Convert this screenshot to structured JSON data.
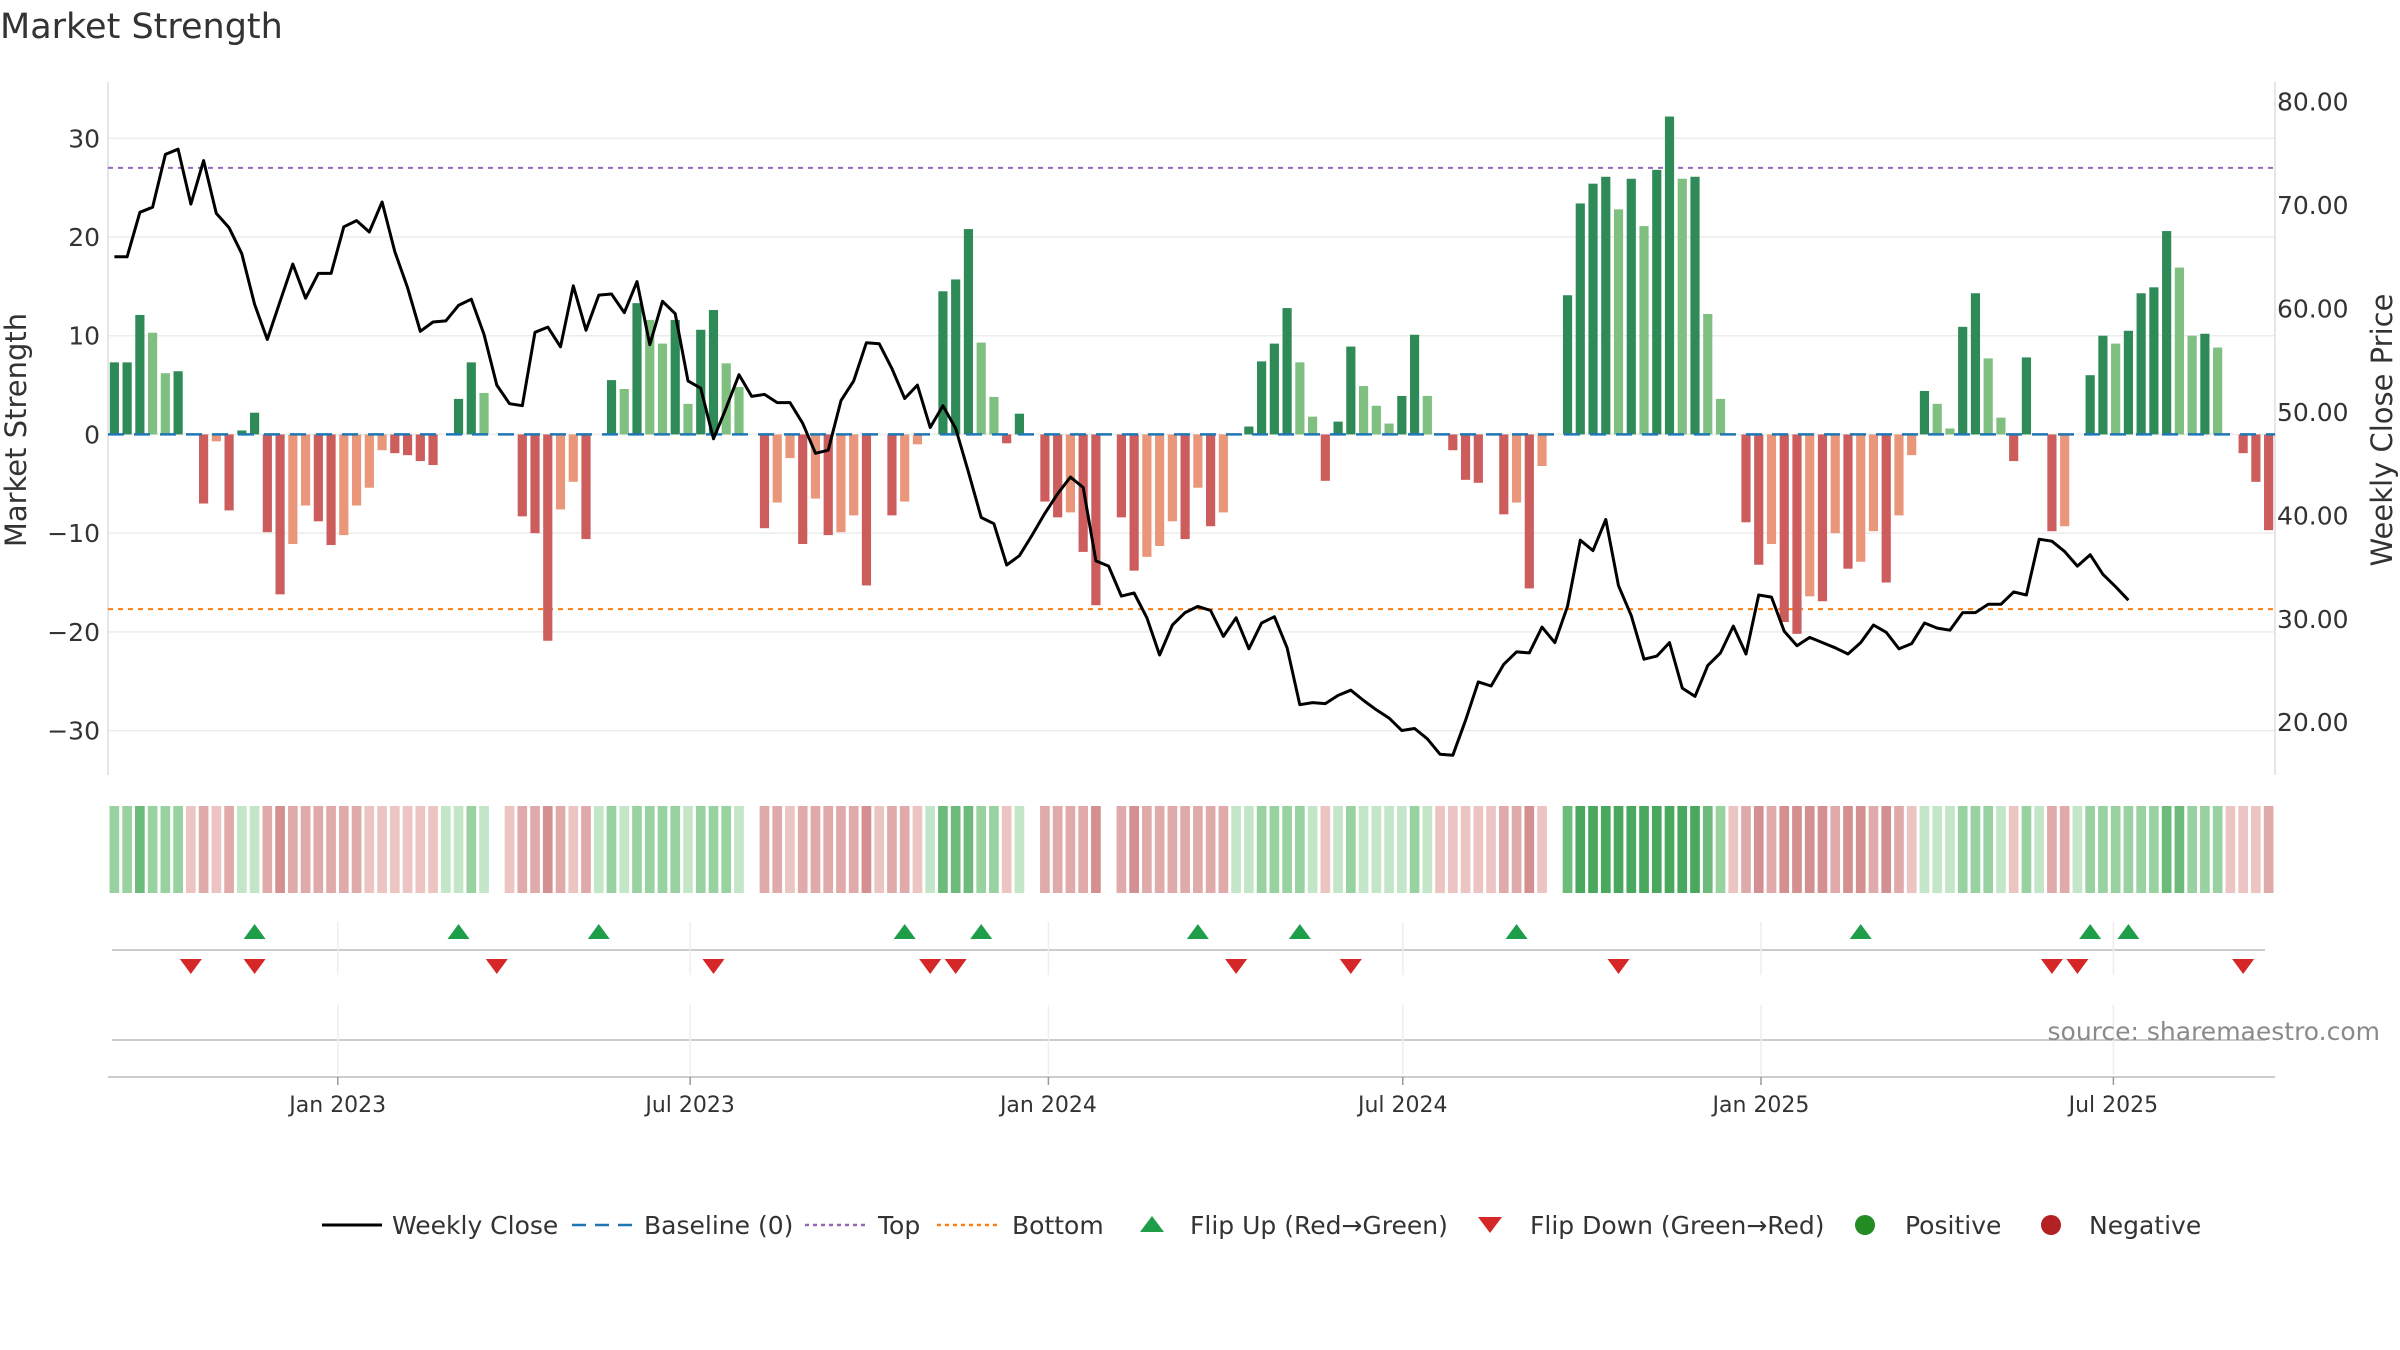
{
  "colors": {
    "pos_strong": "#2e8b57",
    "pos_weak": "#7fbf7f",
    "neg_strong": "#cd5c5c",
    "neg_weak": "#e9967a",
    "close_line": "#000000",
    "baseline": "#1f77b4",
    "top": "#9467bd",
    "bottom": "#ff7f0e",
    "flip_up": "#1f9e4a",
    "flip_down": "#d62728",
    "positive": "#228b22",
    "negative": "#b22222"
  },
  "chart_data": {
    "type": "bar",
    "title": "Market Strength",
    "source": "source: sharemaestro.com",
    "ylabel": "Market Strength",
    "y2label": "Weekly Close Price",
    "ylim": [
      -34.5,
      35.7
    ],
    "y2lim": [
      14.9,
      81.9
    ],
    "yticks": [
      30,
      20,
      10,
      0,
      -10,
      -20,
      -30
    ],
    "ytick_labels": [
      "30",
      "20",
      "10",
      "0",
      "−10",
      "−20",
      "−30"
    ],
    "y2ticks": [
      80,
      70,
      60,
      50,
      40,
      30,
      20
    ],
    "y2tick_labels": [
      "80.00",
      "70.00",
      "60.00",
      "50.00",
      "40.00",
      "30.00",
      "20.00"
    ],
    "top_level": 27,
    "bottom_level": -17.7,
    "baseline": 0,
    "x_start": "2022-09-05",
    "x_end": "2025-09-22",
    "xtick_dates": [
      "2023-01-01",
      "2023-07-01",
      "2024-01-01",
      "2024-07-01",
      "2025-01-01",
      "2025-07-01"
    ],
    "xtick_labels": [
      "Jan 2023",
      "Jul 2023",
      "Jan 2024",
      "Jul 2024",
      "Jan 2025",
      "Jul 2025"
    ],
    "strength": [
      7.3,
      7.3,
      12.1,
      10.3,
      6.2,
      6.4,
      0,
      -7,
      -0.7,
      -7.7,
      0.4,
      2.2,
      -9.9,
      -16.2,
      -11.1,
      -7.2,
      -8.8,
      -11.2,
      -10.2,
      -7.2,
      -5.4,
      -1.6,
      -1.9,
      -2.1,
      -2.7,
      -3.1,
      0,
      3.6,
      7.3,
      4.2,
      0,
      0,
      -8.3,
      -10,
      -20.9,
      -7.6,
      -4.8,
      -10.6,
      0,
      5.5,
      4.6,
      13.3,
      11.6,
      9.2,
      11.6,
      3.1,
      10.6,
      12.6,
      7.2,
      4.8,
      0,
      -9.5,
      -6.9,
      -2.4,
      -11.1,
      -6.5,
      -10.2,
      -9.9,
      -8.2,
      -15.3,
      0,
      -8.2,
      -6.8,
      -1,
      0,
      14.5,
      15.7,
      20.8,
      9.3,
      3.8,
      -0.9,
      2.1,
      0,
      -6.8,
      -8.4,
      -7.9,
      -11.9,
      -17.3,
      0,
      -8.4,
      -13.8,
      -12.4,
      -11.3,
      -8.8,
      -10.6,
      -5.4,
      -9.3,
      -7.9,
      0,
      0.8,
      7.4,
      9.2,
      12.8,
      7.3,
      1.8,
      -4.7,
      1.3,
      8.9,
      4.9,
      2.9,
      1.1,
      3.9,
      10.1,
      3.9,
      0,
      -1.6,
      -4.6,
      -4.9,
      0,
      -8.1,
      -6.9,
      -15.6,
      -3.2,
      0,
      14.1,
      23.4,
      25.4,
      26.1,
      22.8,
      25.9,
      21.1,
      26.8,
      32.2,
      25.9,
      26.1,
      12.2,
      3.6,
      0,
      -8.9,
      -13.2,
      -11.1,
      -19,
      -20.2,
      -16.4,
      -16.9,
      -10,
      -13.6,
      -12.9,
      -9.8,
      -15,
      -8.2,
      -2.1,
      4.4,
      3.1,
      0.6,
      10.9,
      14.3,
      7.7,
      1.7,
      -2.7,
      7.8,
      0,
      -9.8,
      -9.3,
      0,
      6,
      10,
      9.2,
      10.5,
      14.3,
      14.9,
      20.6,
      16.9,
      10,
      10.2,
      8.8,
      0,
      -1.9,
      -4.8,
      -9.7
    ],
    "close": [
      65,
      65,
      69.3,
      69.8,
      74.9,
      75.4,
      70.1,
      74.3,
      69.2,
      67.8,
      65.3,
      60.4,
      57,
      60.7,
      64.3,
      61,
      63.4,
      63.4,
      67.9,
      68.5,
      67.4,
      70.3,
      65.5,
      62,
      57.8,
      58.7,
      58.8,
      60.3,
      60.9,
      57.5,
      52.6,
      50.8,
      50.6,
      57.7,
      58.2,
      56.3,
      62.2,
      57.9,
      61.3,
      61.4,
      59.6,
      62.6,
      56.5,
      60.7,
      59.5,
      53,
      52.3,
      47.4,
      50.4,
      53.6,
      51.5,
      51.7,
      50.9,
      50.9,
      48.9,
      46,
      46.3,
      51.1,
      53,
      56.7,
      56.6,
      54.2,
      51.3,
      52.6,
      48.5,
      50.6,
      48.4,
      44.2,
      39.8,
      39.2,
      35.2,
      36.1,
      38.1,
      40.2,
      42.1,
      43.7,
      42.7,
      35.6,
      35.1,
      32.2,
      32.5,
      30.1,
      26.5,
      29.4,
      30.6,
      31.2,
      30.8,
      28.3,
      30.1,
      27.1,
      29.6,
      30.2,
      27.2,
      21.7,
      21.9,
      21.8,
      22.6,
      23.1,
      22.1,
      21.2,
      20.4,
      19.2,
      19.4,
      18.4,
      16.9,
      16.8,
      20.2,
      23.9,
      23.5,
      25.6,
      26.8,
      26.7,
      29.2,
      27.7,
      31.2,
      37.6,
      36.6,
      39.6,
      33.2,
      30.3,
      26.1,
      26.4,
      27.7,
      23.3,
      22.5,
      25.5,
      26.7,
      29.3,
      26.6,
      32.3,
      32.1,
      28.8,
      27.4,
      28.2,
      27.7,
      27.2,
      26.6,
      27.7,
      29.4,
      28.7,
      27.1,
      27.6,
      29.6,
      29.1,
      28.9,
      30.6,
      30.6,
      31.4,
      31.4,
      32.6,
      32.3,
      37.7,
      37.5,
      36.5,
      35.1,
      36.2,
      34.3,
      33.1,
      31.8
    ],
    "tiles": [
      2,
      2,
      3,
      2,
      2,
      2,
      -1,
      -2,
      -1,
      -2,
      1,
      1,
      -2,
      -3,
      -2,
      -2,
      -2,
      -2,
      -2,
      -2,
      -1,
      -1,
      -1,
      -1,
      -1,
      -1,
      1,
      1,
      2,
      1,
      0,
      -1,
      -2,
      -2,
      -3,
      -2,
      -1,
      -2,
      1,
      2,
      1,
      2,
      2,
      2,
      2,
      1,
      2,
      2,
      2,
      1,
      0,
      -2,
      -2,
      -1,
      -2,
      -2,
      -2,
      -2,
      -2,
      -3,
      -1,
      -2,
      -2,
      -1,
      1,
      3,
      3,
      3,
      2,
      2,
      -1,
      1,
      0,
      -2,
      -2,
      -2,
      -2,
      -3,
      0,
      -2,
      -3,
      -2,
      -2,
      -2,
      -2,
      -2,
      -2,
      -2,
      1,
      1,
      2,
      2,
      2,
      2,
      1,
      -1,
      1,
      2,
      1,
      1,
      1,
      1,
      2,
      1,
      -1,
      -1,
      -1,
      -1,
      -1,
      -2,
      -2,
      -3,
      -1,
      0,
      3,
      4,
      4,
      4,
      4,
      4,
      4,
      4,
      4,
      4,
      4,
      3,
      2,
      -1,
      -2,
      -3,
      -2,
      -3,
      -3,
      -3,
      -3,
      -2,
      -3,
      -3,
      -2,
      -3,
      -2,
      -1,
      1,
      1,
      1,
      2,
      2,
      2,
      1,
      -1,
      2,
      1,
      -2,
      -2,
      1,
      2,
      2,
      2,
      2,
      2,
      2,
      3,
      3,
      2,
      2,
      2,
      -1,
      -1,
      -1,
      -2
    ],
    "flip_up_weeks": [
      11,
      27,
      38,
      62,
      68,
      85,
      93,
      110,
      137,
      155,
      158
    ],
    "flip_down_weeks": [
      6,
      11,
      30,
      47,
      64,
      66,
      88,
      97,
      118,
      152,
      154,
      167
    ],
    "legend": [
      {
        "label": "Weekly Close",
        "kind": "line"
      },
      {
        "label": "Baseline (0)",
        "kind": "dash"
      },
      {
        "label": "Top",
        "kind": "dot"
      },
      {
        "label": "Bottom",
        "kind": "dotdash"
      },
      {
        "label": "Flip Up (Red→Green)",
        "kind": "tri_up"
      },
      {
        "label": "Flip Down (Green→Red)",
        "kind": "tri_down"
      },
      {
        "label": "Positive",
        "kind": "dot_pos"
      },
      {
        "label": "Negative",
        "kind": "dot_neg"
      }
    ]
  }
}
